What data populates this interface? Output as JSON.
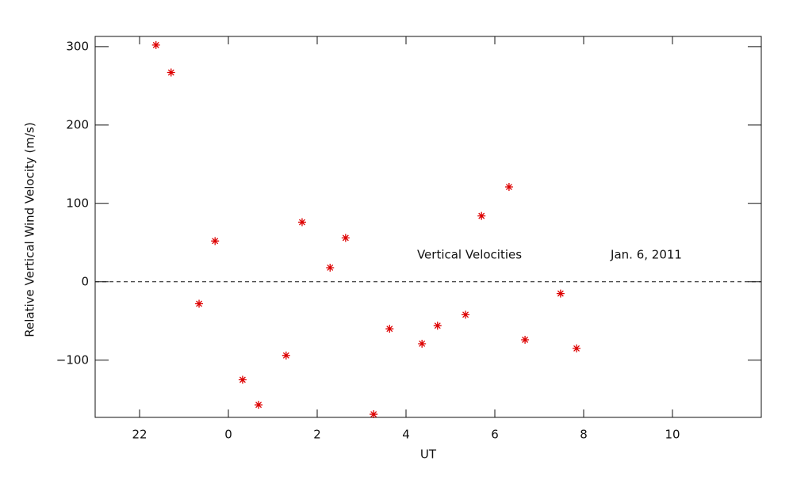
{
  "chart_data": {
    "type": "scatter",
    "xlabel": "UT",
    "ylabel": "Relative Vertical Wind Velocity (m/s)",
    "annotations": [
      "Vertical Velocities",
      "Jan. 6, 2011"
    ],
    "x": [
      -1.63,
      -1.29,
      -0.66,
      -0.3,
      0.32,
      0.68,
      1.3,
      1.66,
      2.29,
      2.64,
      3.27,
      3.63,
      4.36,
      4.71,
      5.34,
      5.7,
      6.32,
      6.68,
      7.48,
      7.84
    ],
    "values": [
      302,
      267,
      -28,
      52,
      -125,
      -157,
      -94,
      76,
      18,
      56,
      -169,
      -60,
      -79,
      -56,
      -42,
      84,
      121,
      -74,
      -15,
      -85
    ],
    "color": "#dd0000",
    "xlim": [
      -3,
      12
    ],
    "ylim": [
      -173,
      313
    ],
    "xticks": [
      {
        "value": -2,
        "label": "22"
      },
      0,
      2,
      4,
      6,
      8,
      10
    ],
    "yticks": [
      {
        "value": -100,
        "label": "−100"
      },
      0,
      100,
      200,
      300
    ],
    "reference_line": 0
  }
}
